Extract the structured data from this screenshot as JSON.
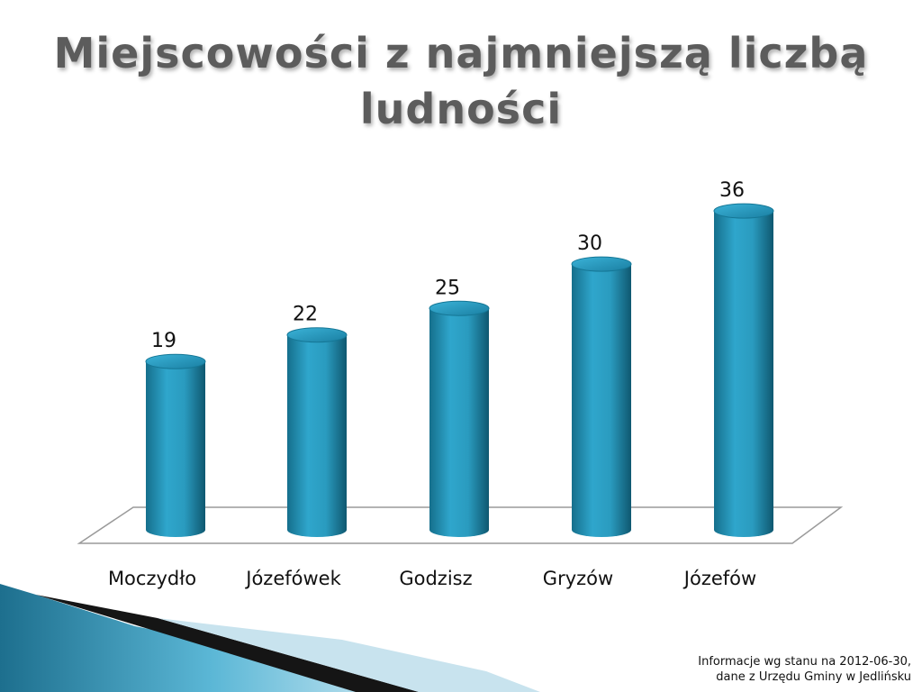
{
  "title": "Miejscowości z najmniejszą liczbą ludności",
  "chart_data": {
    "type": "bar",
    "categories": [
      "Moczydło",
      "Józefówek",
      "Godzisz",
      "Gryzów",
      "Józefów"
    ],
    "values": [
      19,
      22,
      25,
      30,
      36
    ],
    "data_labels": [
      "19",
      "22",
      "25",
      "30",
      "36"
    ],
    "ylim": [
      0,
      36
    ],
    "grid": false,
    "legend": "none",
    "bar_color": "#2a9bbf"
  },
  "source_note": {
    "line1": "Informacje wg stanu na 2012-06-30,",
    "line2": "dane z Urzędu Gminy w Jedlińsku"
  }
}
